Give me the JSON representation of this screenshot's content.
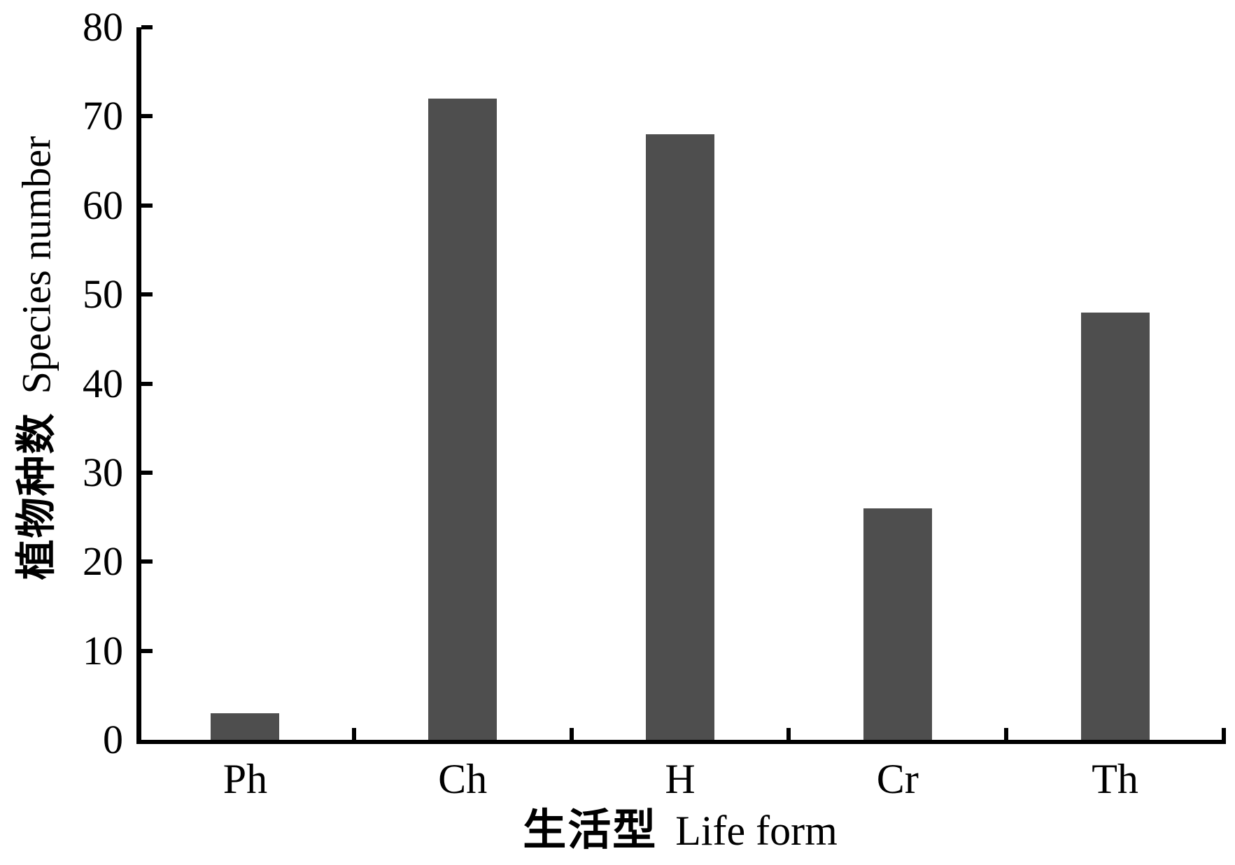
{
  "figure": {
    "background": "#ffffff",
    "bar_color": "#4e4e4e",
    "axis_color": "#000000",
    "text_color": "#000000"
  },
  "chart_data": {
    "type": "bar",
    "categories": [
      "Ph",
      "Ch",
      "H",
      "Cr",
      "Th"
    ],
    "values": [
      3,
      72,
      68,
      26,
      48
    ],
    "title": "",
    "xlabel": "生活型 Life form",
    "xlabel_cn": "生活型",
    "xlabel_en": "Life form",
    "ylabel": "植物种数 Species number",
    "ylabel_cn": "植物种数",
    "ylabel_en": "Species number",
    "ylim": [
      0,
      80
    ],
    "yticks": [
      0,
      10,
      20,
      30,
      40,
      50,
      60,
      70,
      80
    ],
    "grid": false,
    "legend_position": "none",
    "tick_direction": "in",
    "bar_color": "#4e4e4e"
  }
}
